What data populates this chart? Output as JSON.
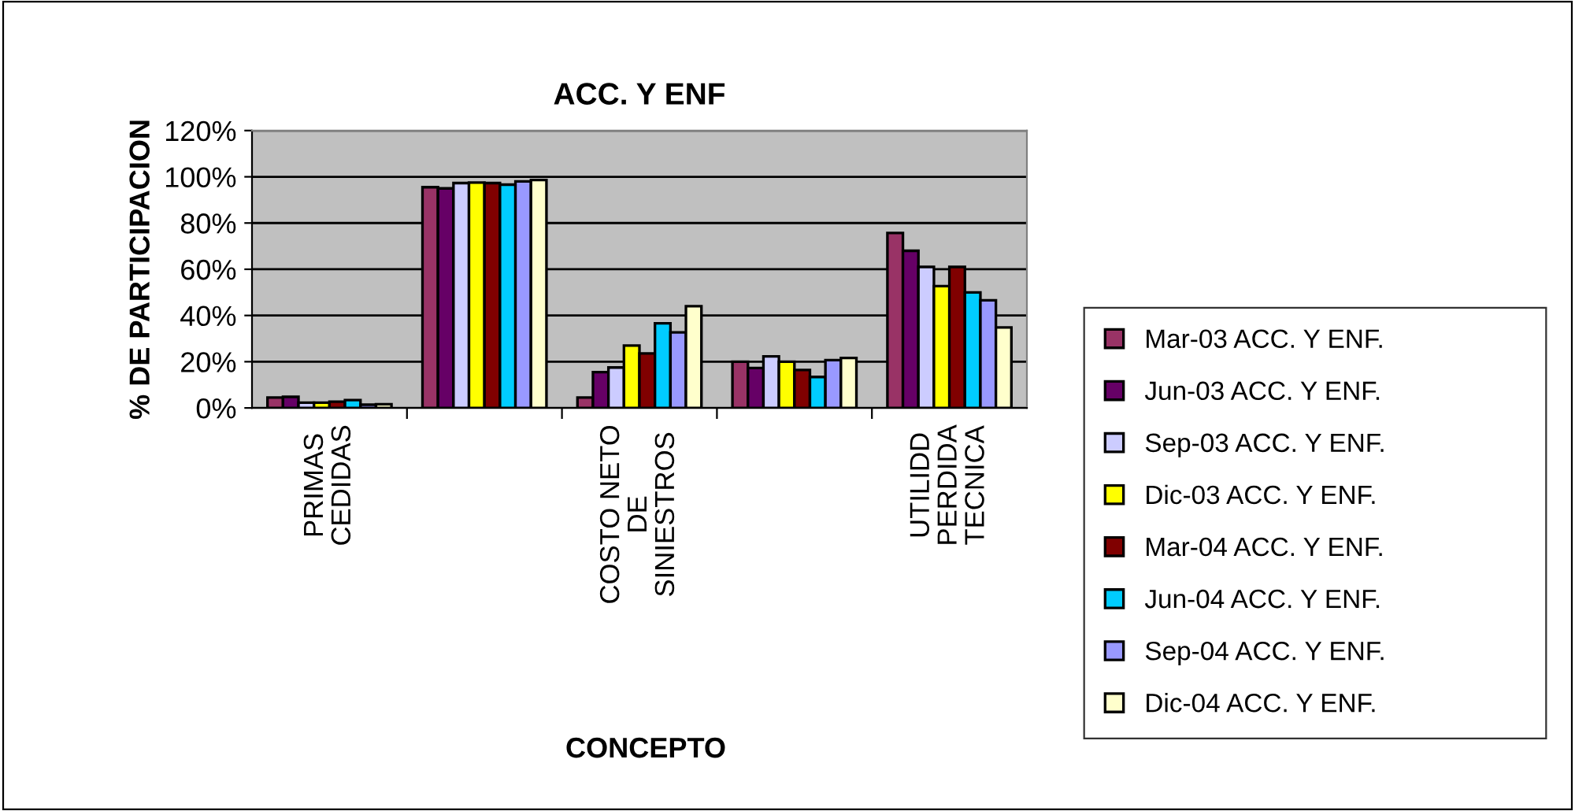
{
  "chart_data": {
    "type": "bar",
    "title": "ACC. Y ENF",
    "xlabel": "CONCEPTO",
    "ylabel": "% DE PARTICIPACION",
    "categories": [
      "PRIMAS\nCEDIDAS",
      null,
      "COSTO NETO\nDE\nSINIESTROS",
      null,
      "UTILIDD\nPERDIDA\nTECNICA"
    ],
    "series": [
      {
        "name": "Mar-03 ACC. Y ENF.",
        "color": "#993366",
        "values": [
          4.5,
          95.5,
          4.5,
          20,
          75.7
        ]
      },
      {
        "name": "Jun-03 ACC. Y ENF.",
        "color": "#660066",
        "values": [
          4.8,
          95,
          15.5,
          17.3,
          68
        ]
      },
      {
        "name": "Sep-03 ACC. Y ENF.",
        "color": "#ccccff",
        "values": [
          2.3,
          97.3,
          17.5,
          22.3,
          61
        ]
      },
      {
        "name": "Dic-03 ACC. Y ENF.",
        "color": "#ffff00",
        "values": [
          2.3,
          97.5,
          27,
          20,
          52.7
        ]
      },
      {
        "name": "Mar-04 ACC. Y ENF.",
        "color": "#800000",
        "values": [
          2.7,
          97.3,
          23.6,
          16.4,
          61
        ]
      },
      {
        "name": "Jun-04 ACC. Y ENF.",
        "color": "#00ccff",
        "values": [
          3.4,
          96.6,
          36.6,
          13.4,
          50
        ]
      },
      {
        "name": "Sep-04 ACC. Y ENF.",
        "color": "#9999ff",
        "values": [
          1.4,
          98,
          32.7,
          20.7,
          46.6
        ]
      },
      {
        "name": "Dic-04 ACC. Y ENF.",
        "color": "#ffffcc",
        "values": [
          1.6,
          98.6,
          44,
          21.6,
          34.8
        ]
      }
    ],
    "ylim": [
      0,
      120
    ],
    "yticks": [
      {
        "value": 0,
        "label": "0%"
      },
      {
        "value": 20,
        "label": "20%"
      },
      {
        "value": 40,
        "label": "40%"
      },
      {
        "value": 60,
        "label": "60%"
      },
      {
        "value": 80,
        "label": "80%"
      },
      {
        "value": 100,
        "label": "100%"
      },
      {
        "value": 120,
        "label": "120%"
      }
    ],
    "grid": "y",
    "legend": "right"
  }
}
